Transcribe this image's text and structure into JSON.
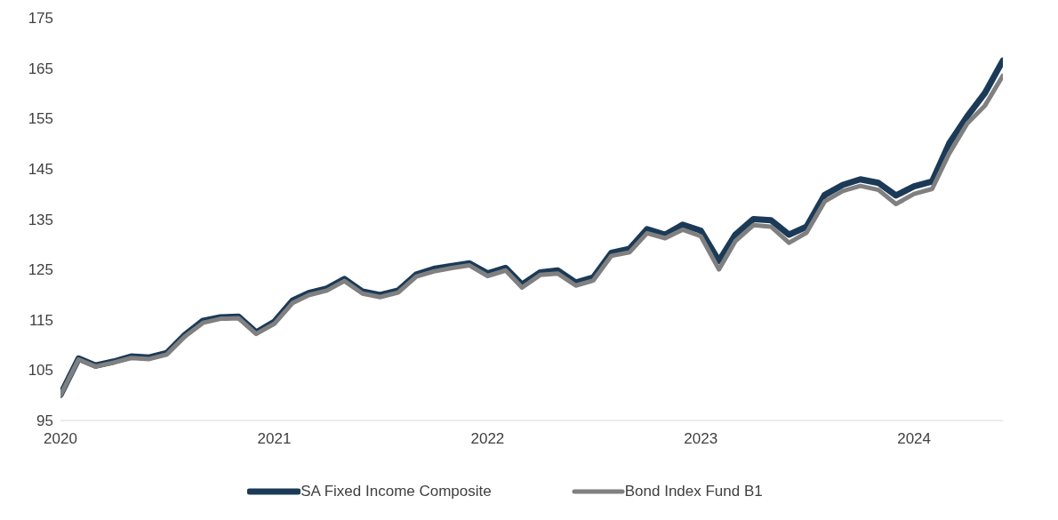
{
  "chart_data": {
    "type": "line",
    "x": [
      "2020-01",
      "2020-02",
      "2020-03",
      "2020-04",
      "2020-05",
      "2020-06",
      "2020-07",
      "2020-08",
      "2020-09",
      "2020-10",
      "2020-11",
      "2020-12",
      "2021-01",
      "2021-02",
      "2021-03",
      "2021-04",
      "2021-05",
      "2021-06",
      "2021-07",
      "2021-08",
      "2021-09",
      "2021-10",
      "2021-11",
      "2021-12",
      "2022-01",
      "2022-02",
      "2022-03",
      "2022-04",
      "2022-05",
      "2022-06",
      "2022-07",
      "2022-08",
      "2022-09",
      "2022-10",
      "2022-11",
      "2022-12",
      "2023-01",
      "2023-02",
      "2023-03",
      "2023-04",
      "2023-05",
      "2023-06",
      "2023-07",
      "2023-08",
      "2023-09",
      "2023-10",
      "2023-11",
      "2023-12",
      "2024-01",
      "2024-02",
      "2024-03",
      "2024-04",
      "2024-05",
      "2024-06"
    ],
    "series": [
      {
        "name": "SA Fixed Income Composite",
        "color": "#1b3a57",
        "values": [
          100.1,
          107.3,
          105.9,
          106.7,
          107.7,
          107.5,
          108.4,
          112.0,
          114.8,
          115.5,
          115.6,
          112.5,
          114.6,
          118.8,
          120.3,
          121.2,
          123.1,
          120.6,
          119.9,
          120.8,
          124.0,
          125.1,
          125.7,
          126.2,
          124.2,
          125.3,
          122.0,
          124.4,
          124.8,
          122.4,
          123.4,
          128.3,
          129.1,
          133.0,
          131.9,
          133.9,
          132.7,
          126.7,
          131.9,
          135.0,
          134.8,
          131.9,
          133.5,
          139.8,
          141.8,
          142.9,
          142.2,
          139.7,
          141.5,
          142.5,
          150.0,
          155.4,
          160.0,
          166.5
        ]
      },
      {
        "name": "Bond Index Fund B1",
        "color": "#808080",
        "values": [
          100.0,
          107.1,
          105.7,
          106.5,
          107.4,
          107.2,
          108.1,
          111.7,
          114.4,
          115.2,
          115.3,
          112.2,
          114.2,
          118.3,
          119.9,
          120.8,
          122.7,
          120.2,
          119.5,
          120.4,
          123.6,
          124.6,
          125.3,
          125.8,
          123.7,
          124.8,
          121.4,
          123.9,
          124.2,
          121.8,
          122.8,
          127.7,
          128.4,
          132.2,
          131.2,
          132.9,
          131.6,
          125.0,
          130.6,
          133.8,
          133.5,
          130.3,
          132.3,
          138.5,
          140.6,
          141.6,
          140.8,
          138.0,
          140.0,
          141.0,
          148.0,
          154.0,
          157.5,
          163.5
        ]
      }
    ],
    "xlim": [
      "2020-01",
      "2024-06"
    ],
    "xticks": [
      "2020",
      "2021",
      "2022",
      "2023",
      "2024"
    ],
    "ylim": [
      95,
      175
    ],
    "yticks": [
      95,
      105,
      115,
      125,
      135,
      145,
      155,
      165,
      175
    ],
    "grid": false,
    "legend": "bottom",
    "marker": "none",
    "line_style": "solid"
  }
}
